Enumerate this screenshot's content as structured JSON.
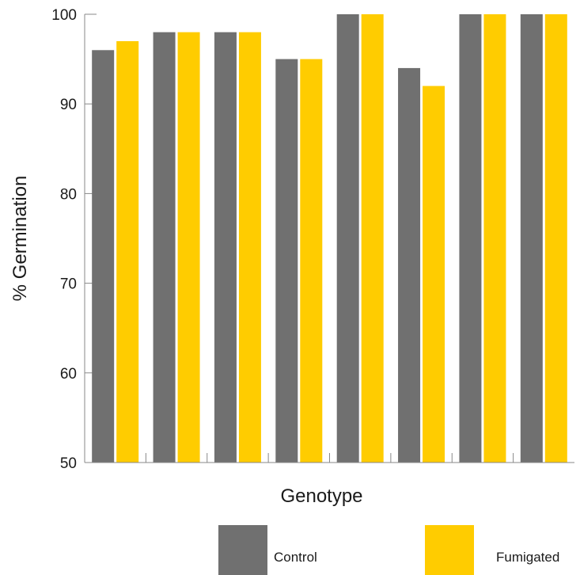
{
  "chart_data": {
    "type": "bar",
    "title": "",
    "xlabel": "Genotype",
    "ylabel": "% Germination",
    "ylim": [
      50,
      100
    ],
    "yticks": [
      50,
      60,
      70,
      80,
      90,
      100
    ],
    "categories": [
      "",
      "",
      "",
      "",
      "",
      "",
      "",
      ""
    ],
    "series": [
      {
        "name": "Control",
        "color": "#707070",
        "values": [
          96,
          98,
          98,
          95,
          100,
          94,
          100,
          100
        ]
      },
      {
        "name": "Fumigated",
        "color": "#FFCC00",
        "values": [
          97,
          98,
          98,
          95,
          100,
          92,
          100,
          100
        ]
      }
    ],
    "grid": false,
    "legend_position": "bottom"
  }
}
